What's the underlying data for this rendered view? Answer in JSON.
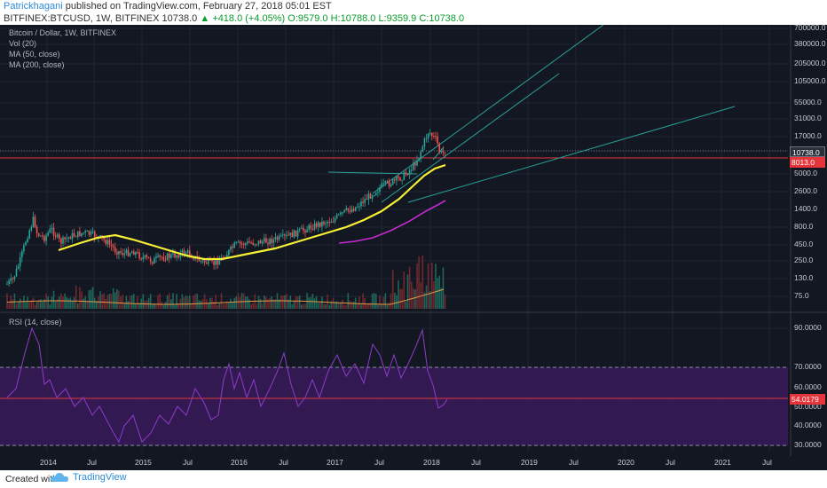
{
  "publish": {
    "author": "Patrickhagani",
    "text": "published on TradingView.com, February 27, 2018 05:01 EST"
  },
  "header": {
    "symbol": "BITFINEX:BTCUSD, 1W, BITFINEX",
    "last": "10738.0",
    "change": "+418.0 (+4.05%)",
    "open": "O:9579.0",
    "high": "H:10788.0",
    "low": "L:9359.9",
    "close": "C:10738.0"
  },
  "legend": {
    "title": "Bitcoin / Dollar, 1W, BITFINEX",
    "vol": "Vol (20)",
    "ma50": "MA (50, close)",
    "ma200": "MA (200, close)",
    "rsi": "RSI (14, close)"
  },
  "price_axis": [
    "700000.0",
    "380000.0",
    "205000.0",
    "105000.0",
    "55000.0",
    "31000.0",
    "17000.0",
    "10738.0",
    "8013.0",
    "5000.0",
    "2600.0",
    "1400.0",
    "800.0",
    "450.0",
    "250.0",
    "130.0",
    "75.0"
  ],
  "rsi_axis": [
    "90.0000",
    "70.0000",
    "60.0000",
    "54.0179",
    "50.0000",
    "40.0000",
    "30.0000"
  ],
  "time_axis": [
    "2014",
    "Jul",
    "2015",
    "Jul",
    "2016",
    "Jul",
    "2017",
    "Jul",
    "2018",
    "Jul",
    "2019",
    "Jul",
    "2020",
    "Jul",
    "2021",
    "Jul"
  ],
  "badges": {
    "price": "10738.0",
    "support": "8013.0",
    "rsi": "54.0179"
  },
  "colors": {
    "background": "#131722",
    "up": "#26a69a",
    "down": "#ef5350",
    "ma50": "#f7f035",
    "ma200": "#c52bd0",
    "trend": "#2aa198",
    "rsi_line": "#8e3bc9",
    "rsi_band": "#3a1a5a",
    "support": "#e5343a"
  },
  "footer": {
    "created": "Created with",
    "brand": "TradingView"
  }
}
